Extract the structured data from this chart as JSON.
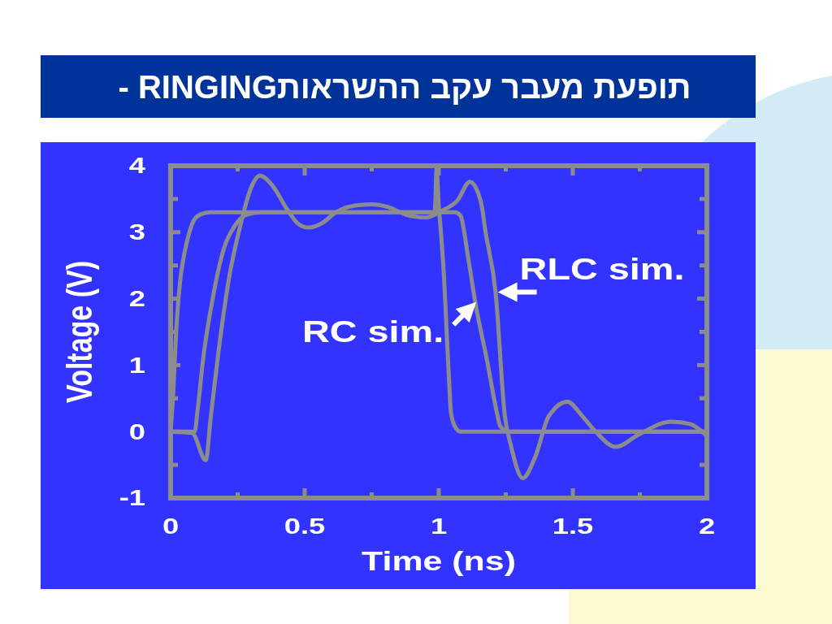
{
  "chart_data": {
    "type": "line",
    "title": "תופעת מעבר עקב ההשראותRINGING -",
    "xlabel": "Time (ns)",
    "ylabel": "Voltage (V)",
    "xlim": [
      0,
      2
    ],
    "ylim": [
      -1,
      4
    ],
    "xticks": [
      0,
      {
        "value": 0.25,
        "label": null
      },
      0.5,
      {
        "value": 0.75,
        "label": null
      },
      1,
      {
        "value": 1.25,
        "label": null
      },
      1.5,
      {
        "value": 1.75,
        "label": null
      },
      2
    ],
    "yticks": [
      -1,
      {
        "value": -0.5,
        "label": null
      },
      0,
      {
        "value": 0.5,
        "label": null
      },
      1,
      {
        "value": 1.5,
        "label": null
      },
      2,
      {
        "value": 2.5,
        "label": null
      },
      3,
      {
        "value": 3.5,
        "label": null
      },
      4
    ],
    "series": [
      {
        "color": "#8c8c8c",
        "x": [
          0,
          0.01,
          0.02,
          0.035,
          0.05,
          0.07,
          0.09,
          0.12,
          0.15,
          0.985,
          0.992,
          1.0,
          1.01,
          1.02,
          1.03,
          1.04,
          1.045,
          1.06,
          1.08,
          2.0
        ],
        "values": [
          0,
          0.6,
          1.45,
          2.25,
          2.65,
          3.0,
          3.2,
          3.28,
          3.3,
          3.3,
          3.95,
          3.4,
          2.9,
          2.3,
          1.45,
          0.65,
          0.3,
          0.08,
          0,
          0
        ]
      },
      {
        "color": "#8c8c8c",
        "x": [
          0,
          0.09,
          0.1,
          0.12,
          0.16,
          0.2,
          0.24,
          0.28,
          0.34,
          1.06,
          1.081,
          1.111,
          1.136,
          1.182,
          1.212,
          1.23,
          1.26,
          2.0
        ],
        "values": [
          0,
          0,
          0.3,
          1.05,
          2.07,
          2.77,
          3.1,
          3.26,
          3.3,
          3.3,
          3.25,
          2.58,
          1.95,
          1.03,
          0.38,
          0.08,
          0,
          0
        ]
      },
      {
        "color": "#8c8c8c",
        "x": [
          0,
          0.08,
          0.131,
          0.15,
          0.18,
          0.22,
          0.26,
          0.3,
          0.333,
          0.38,
          0.435,
          0.475,
          0.515,
          0.566,
          0.616,
          0.687,
          0.748,
          0.81,
          0.88,
          0.95,
          1.01,
          1.07,
          1.116,
          1.146,
          1.162,
          1.172,
          1.212,
          1.247,
          1.268,
          1.313,
          1.36,
          1.41,
          1.48,
          1.536,
          1.585,
          1.66,
          1.747,
          1.867,
          1.94,
          2.0
        ],
        "values": [
          0,
          -0.02,
          -0.43,
          0.23,
          1.25,
          2.36,
          3.1,
          3.67,
          3.85,
          3.7,
          3.34,
          3.13,
          3.07,
          3.14,
          3.3,
          3.4,
          3.42,
          3.38,
          3.26,
          3.22,
          3.32,
          3.48,
          3.76,
          3.6,
          3.36,
          3.07,
          2.09,
          0.22,
          -0.19,
          -0.7,
          -0.38,
          0.23,
          0.45,
          0.23,
          0,
          -0.23,
          -0.04,
          0.15,
          0.11,
          -0.06
        ]
      }
    ],
    "annotations": [
      {
        "text": "RC sim.",
        "x": 1.14,
        "y": 1.95
      },
      {
        "text": "RLC sim.",
        "x": 1.22,
        "y": 2.1
      }
    ]
  }
}
